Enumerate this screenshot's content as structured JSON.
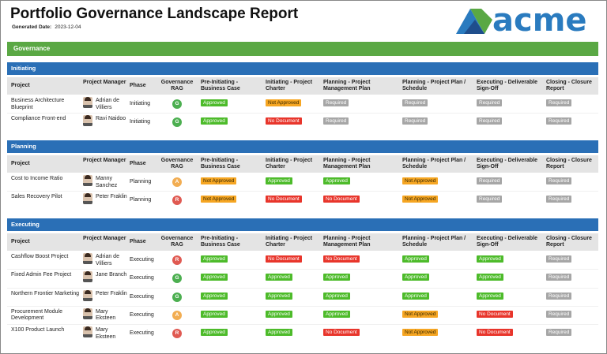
{
  "header": {
    "title": "Portfolio Governance Landscape Report",
    "generated_label": "Generated Date:",
    "generated_date": "2023-12-04",
    "logo": "acme"
  },
  "banner": "Governance",
  "table": {
    "columns": [
      "Project",
      "Project Manager",
      "Phase",
      "Governance RAG",
      "Pre-Initiating - Business Case",
      "Initiating - Project Charter",
      "Planning - Project Management Plan",
      "Planning - Project Plan / Schedule",
      "Executing - Deliverable Sign-Off",
      "Closing - Closure Report"
    ],
    "status_colors": {
      "Approved": "#4dbb2a",
      "Not Approved": "#f6a623",
      "No Document": "#e8352b",
      "Required": "#a6a6a6"
    },
    "status_text_colors": {
      "Approved": "#ffffff",
      "Not Approved": "#3a2a00",
      "No Document": "#ffffff",
      "Required": "#ffffff"
    },
    "rag_colors": {
      "G": "#4caf50",
      "A": "#f2ad52",
      "R": "#e05a52"
    },
    "sections": [
      {
        "name": "Initiating",
        "rows": [
          {
            "project": "Business Architecture Blueprint",
            "manager": "Adrian de Villiers",
            "phase": "Initiating",
            "rag": "G",
            "statuses": [
              "Approved",
              "Not Approved",
              "Required",
              "Required",
              "Required",
              "Required"
            ]
          },
          {
            "project": "Compliance Front-end",
            "manager": "Ravi Naidoo",
            "phase": "Initiating",
            "rag": "G",
            "statuses": [
              "Approved",
              "No Document",
              "Required",
              "Required",
              "Required",
              "Required"
            ]
          }
        ]
      },
      {
        "name": "Planning",
        "rows": [
          {
            "project": "Cost to Income Ratio",
            "manager": "Manny Sanchez",
            "phase": "Planning",
            "rag": "A",
            "statuses": [
              "Not Approved",
              "Approved",
              "Approved",
              "Not Approved",
              "Required",
              "Required"
            ]
          },
          {
            "project": "Sales Recovery Pilot",
            "manager": "Peter Fraklin",
            "phase": "Planning",
            "rag": "R",
            "statuses": [
              "Not Approved",
              "No Document",
              "No Document",
              "Not Approved",
              "Required",
              "Required"
            ]
          }
        ]
      },
      {
        "name": "Executing",
        "rows": [
          {
            "project": "Cashflow Boost Project",
            "manager": "Adrian de Villiers",
            "phase": "Executing",
            "rag": "R",
            "statuses": [
              "Approved",
              "No Document",
              "No Document",
              "Approved",
              "Approved",
              "Required"
            ]
          },
          {
            "project": "Fixed Admin Fee Project",
            "manager": "Jane Branch",
            "phase": "Executing",
            "rag": "G",
            "statuses": [
              "Approved",
              "Approved",
              "Approved",
              "Approved",
              "Approved",
              "Required"
            ]
          },
          {
            "project": "Northern Frontier Marketing",
            "manager": "Peter Fraklin",
            "phase": "Executing",
            "rag": "G",
            "statuses": [
              "Approved",
              "Approved",
              "Approved",
              "Approved",
              "Approved",
              "Required"
            ]
          },
          {
            "project": "Procurement Module Development",
            "manager": "Mary Eksteen",
            "phase": "Executing",
            "rag": "A",
            "statuses": [
              "Approved",
              "Approved",
              "Approved",
              "Not Approved",
              "No Document",
              "Required"
            ]
          },
          {
            "project": "X100 Product Launch",
            "manager": "Mary Eksteen",
            "phase": "Executing",
            "rag": "R",
            "statuses": [
              "Approved",
              "Approved",
              "No Document",
              "Not Approved",
              "No Document",
              "Required"
            ]
          }
        ]
      }
    ]
  }
}
